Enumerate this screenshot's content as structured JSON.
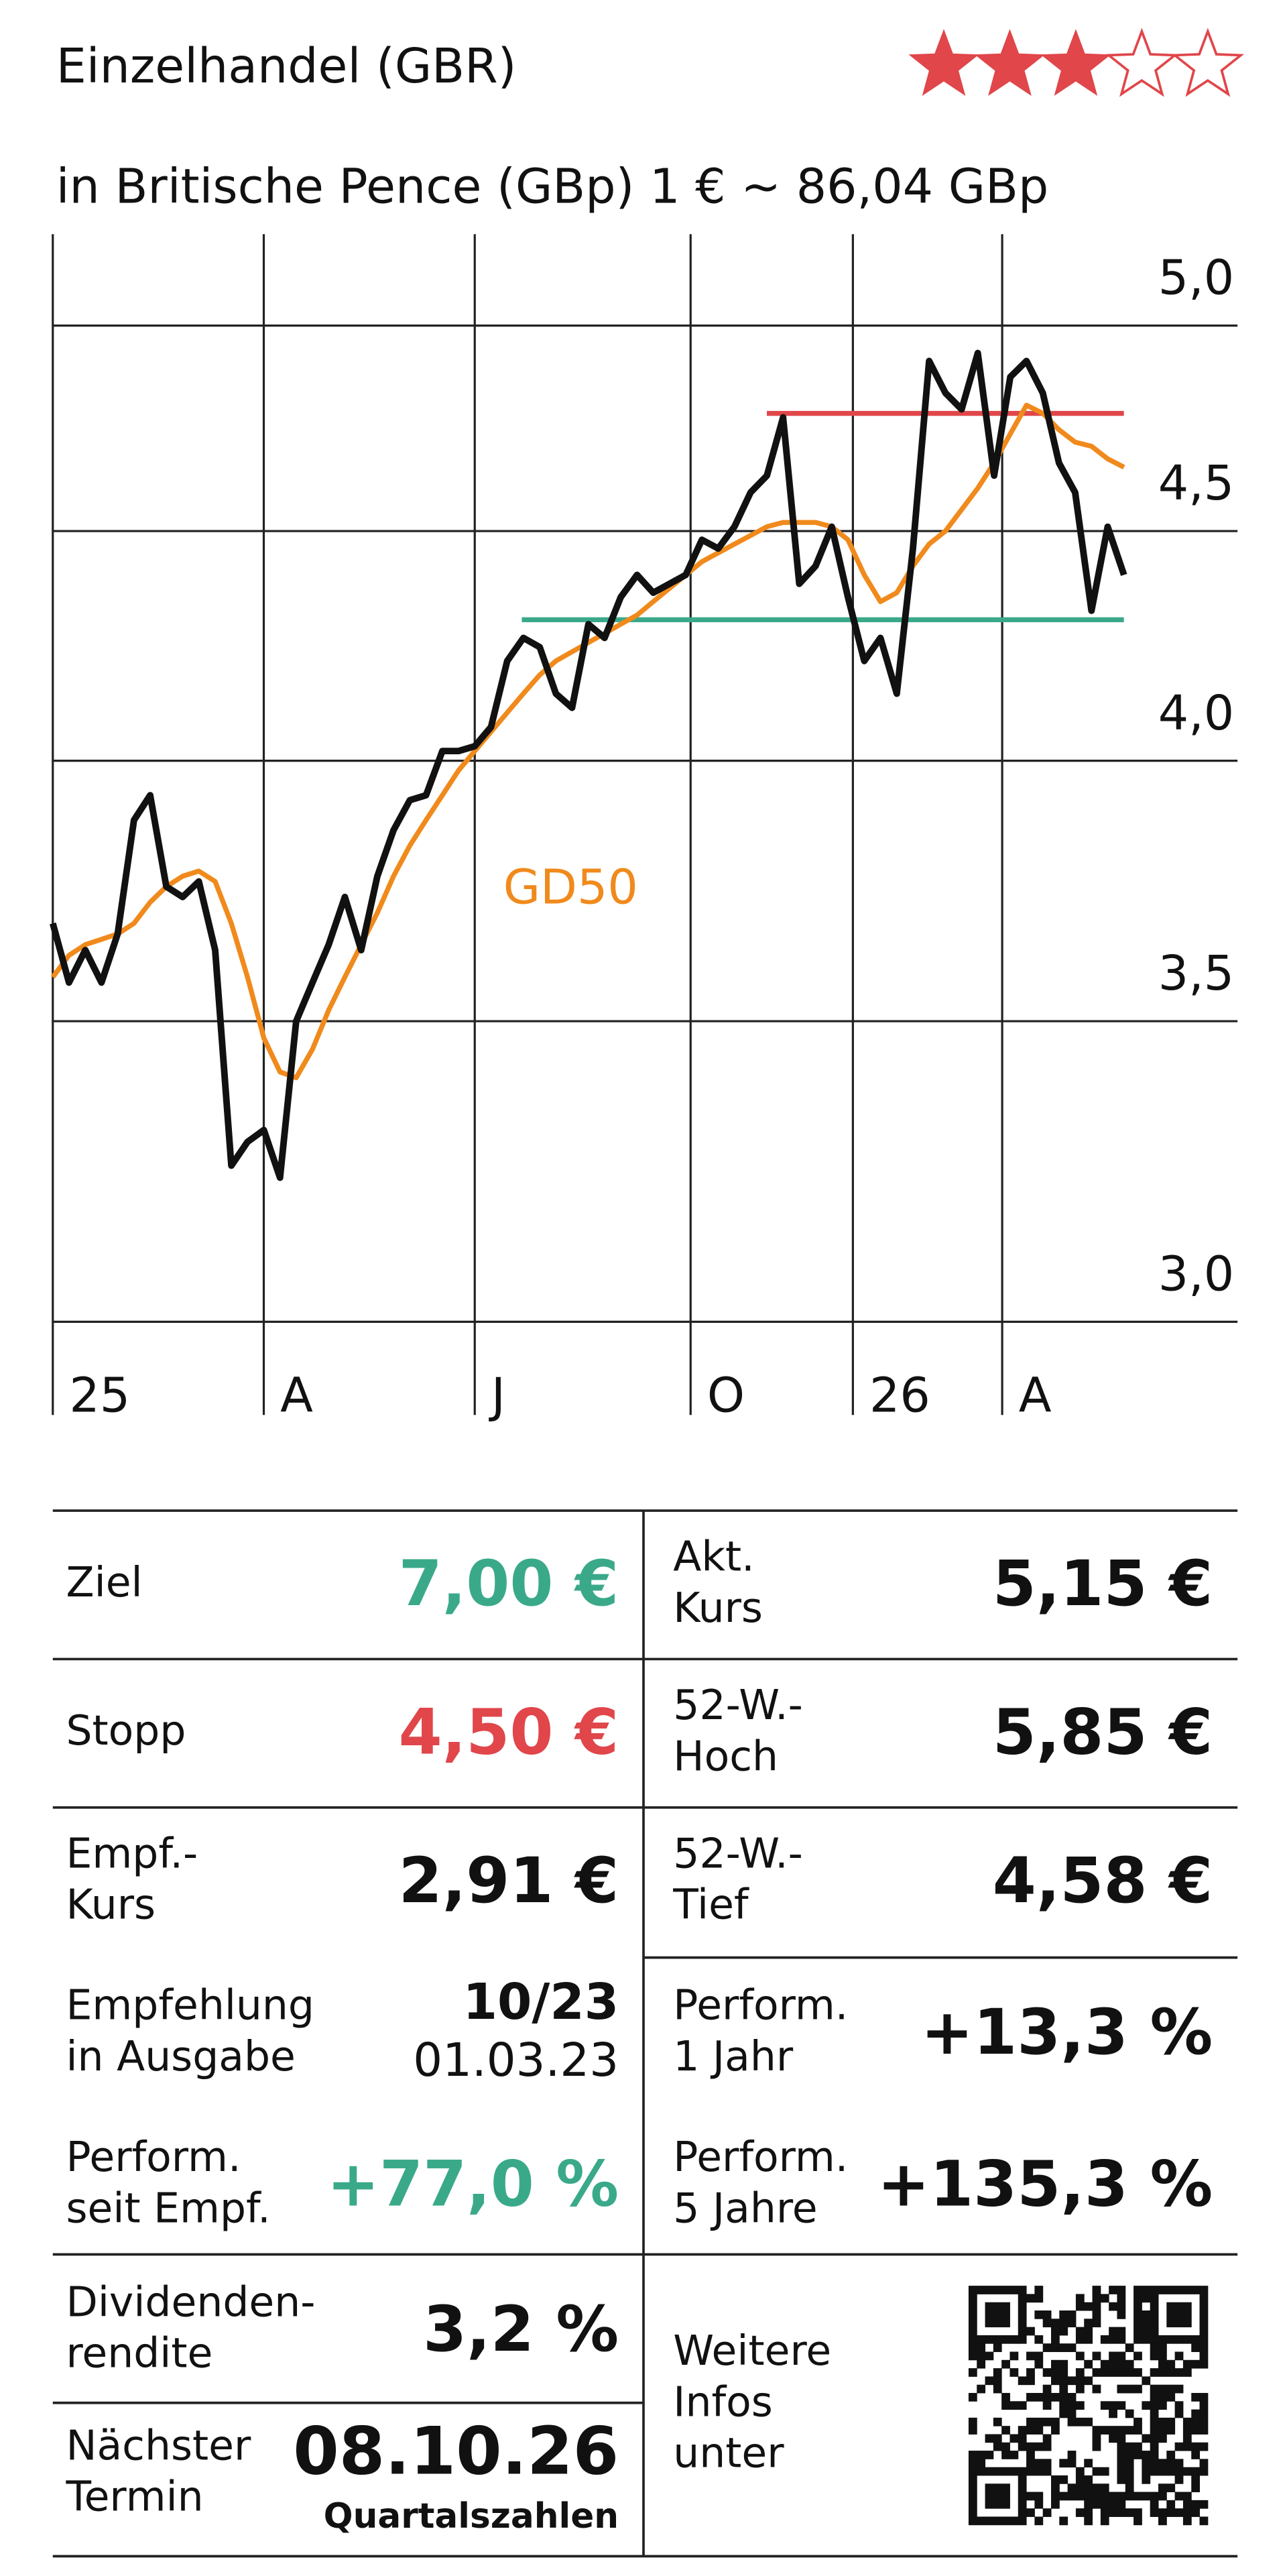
{
  "header": {
    "title": "Einzelhandel (GBR)",
    "rating": 3,
    "rating_max": 5
  },
  "chart_data": {
    "type": "line",
    "subtitle": "in Britische Pence (GBp) 1 € ~ 86,04 GBp",
    "log_scale": true,
    "grid": true,
    "xlim": [
      0,
      73
    ],
    "xticks": [
      {
        "value": 0,
        "label": "25"
      },
      {
        "value": 13,
        "label": "A"
      },
      {
        "value": 26,
        "label": "J"
      },
      {
        "value": 39.3,
        "label": "O"
      },
      {
        "value": 49.3,
        "label": "26"
      },
      {
        "value": 58.5,
        "label": "A"
      }
    ],
    "ylim": [
      2.86,
      5.24
    ],
    "yticks": [
      {
        "value": 3,
        "label": "3,0"
      },
      {
        "value": 3.5,
        "label": "3,5"
      },
      {
        "value": 4,
        "label": "4,0"
      },
      {
        "value": 4.5,
        "label": "4,5"
      },
      {
        "value": 5,
        "label": "5,0"
      }
    ],
    "series": [
      {
        "color": "#111111",
        "values": [
          3.68,
          3.57,
          3.63,
          3.57,
          3.66,
          3.88,
          3.93,
          3.75,
          3.73,
          3.76,
          3.63,
          3.25,
          3.29,
          3.31,
          3.23,
          3.5,
          3.57,
          3.64,
          3.73,
          3.63,
          3.77,
          3.86,
          3.92,
          3.93,
          4.02,
          4.02,
          4.03,
          4.07,
          4.21,
          4.26,
          4.24,
          4.14,
          4.11,
          4.29,
          4.26,
          4.35,
          4.4,
          4.36,
          4.38,
          4.4,
          4.48,
          4.46,
          4.51,
          4.59,
          4.63,
          4.77,
          4.38,
          4.42,
          4.51,
          4.35,
          4.21,
          4.26,
          4.14,
          4.46,
          4.91,
          4.83,
          4.79,
          4.93,
          4.63,
          4.87,
          4.91,
          4.83,
          4.66,
          4.59,
          4.32,
          4.51,
          4.4
        ]
      },
      {
        "name": "GD50",
        "color": "#f08a1c",
        "values": [
          3.58,
          3.62,
          3.64,
          3.65,
          3.66,
          3.68,
          3.72,
          3.75,
          3.77,
          3.78,
          3.76,
          3.68,
          3.58,
          3.47,
          3.41,
          3.4,
          3.45,
          3.52,
          3.58,
          3.64,
          3.7,
          3.77,
          3.83,
          3.88,
          3.93,
          3.98,
          4.02,
          4.06,
          4.1,
          4.14,
          4.18,
          4.21,
          4.23,
          4.25,
          4.27,
          4.29,
          4.31,
          4.34,
          4.37,
          4.4,
          4.43,
          4.45,
          4.47,
          4.49,
          4.51,
          4.52,
          4.52,
          4.52,
          4.51,
          4.48,
          4.4,
          4.34,
          4.36,
          4.42,
          4.47,
          4.5,
          4.55,
          4.6,
          4.66,
          4.73,
          4.8,
          4.78,
          4.74,
          4.71,
          4.7,
          4.67,
          4.65
        ]
      }
    ],
    "hlines": [
      {
        "value": 4.78,
        "xmin": 44,
        "xmax": 66,
        "color": "#e0464a"
      },
      {
        "value": 4.3,
        "xmin": 28.9,
        "xmax": 66,
        "color": "#3aa98a"
      }
    ]
  },
  "table": {
    "left": [
      {
        "label": [
          "Ziel"
        ],
        "value": "7,00 €",
        "color": "#3aa98a"
      },
      {
        "label": [
          "Stopp"
        ],
        "value": "4,50 €",
        "color": "#e0464a"
      },
      {
        "label": [
          "Empf.-",
          "Kurs"
        ],
        "value": "2,91 €",
        "color": "#111111"
      },
      {
        "label": [
          "Empfehlung",
          "in Ausgabe"
        ],
        "value": "10/23",
        "sub": "01.03.23",
        "color": "#111111"
      },
      {
        "label": [
          "Perform.",
          "seit Empf."
        ],
        "value": "+77,0 %",
        "color": "#3aa98a"
      },
      {
        "label": [
          "Dividenden-",
          "rendite"
        ],
        "value": "3,2 %",
        "color": "#111111"
      },
      {
        "label": [
          "Nächster",
          "Termin"
        ],
        "value": "08.10.26",
        "sub": "Quartalszahlen",
        "color": "#111111"
      }
    ],
    "right": [
      {
        "label": [
          "Akt.",
          "Kurs"
        ],
        "value": "5,15 €",
        "color": "#111111"
      },
      {
        "label": [
          "52-W.-",
          "Hoch"
        ],
        "value": "5,85 €",
        "color": "#111111"
      },
      {
        "label": [
          "52-W.-",
          "Tief"
        ],
        "value": "4,58 €",
        "color": "#111111"
      },
      {
        "label": [
          "Perform.",
          "1 Jahr"
        ],
        "value": "+13,3 %",
        "color": "#111111"
      },
      {
        "label": [
          "Perform.",
          "5 Jahre"
        ],
        "value": "+135,3 %",
        "color": "#111111"
      },
      {
        "label": [
          "Weitere",
          "Infos",
          "unter"
        ]
      }
    ]
  }
}
